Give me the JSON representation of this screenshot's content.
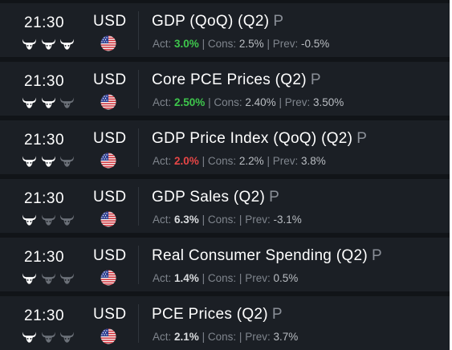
{
  "colors": {
    "background": "#111418",
    "row_background": "#1b1f25",
    "text_primary": "#ffffff",
    "text_muted": "#7f858d",
    "actual_better": "#3ec74c",
    "actual_worse": "#e64646",
    "bull_active": "#ffffff",
    "bull_inactive": "#6b7078"
  },
  "labels": {
    "actual": "Act:",
    "consensus": "Cons:",
    "previous": "Prev:",
    "separator": "|"
  },
  "events": [
    {
      "time": "21:30",
      "currency": "USD",
      "flag_icon": "us-flag-icon",
      "importance": 3,
      "name": "GDP (QoQ) (Q2)",
      "suffix": "P",
      "actual": "3.0%",
      "actual_status": "good",
      "consensus": "2.5%",
      "previous": "-0.5%"
    },
    {
      "time": "21:30",
      "currency": "USD",
      "flag_icon": "us-flag-icon",
      "importance": 2,
      "name": "Core PCE Prices (Q2)",
      "suffix": "P",
      "actual": "2.50%",
      "actual_status": "good",
      "consensus": "2.40%",
      "previous": "3.50%"
    },
    {
      "time": "21:30",
      "currency": "USD",
      "flag_icon": "us-flag-icon",
      "importance": 2,
      "name": "GDP Price Index (QoQ) (Q2)",
      "suffix": "P",
      "actual": "2.0%",
      "actual_status": "bad",
      "consensus": "2.2%",
      "previous": "3.8%"
    },
    {
      "time": "21:30",
      "currency": "USD",
      "flag_icon": "us-flag-icon",
      "importance": 1,
      "name": "GDP Sales (Q2)",
      "suffix": "P",
      "actual": "6.3%",
      "actual_status": "neutral",
      "consensus": "",
      "previous": "-3.1%"
    },
    {
      "time": "21:30",
      "currency": "USD",
      "flag_icon": "us-flag-icon",
      "importance": 1,
      "name": "Real Consumer Spending (Q2)",
      "suffix": "P",
      "actual": "1.4%",
      "actual_status": "neutral",
      "consensus": "",
      "previous": "0.5%"
    },
    {
      "time": "21:30",
      "currency": "USD",
      "flag_icon": "us-flag-icon",
      "importance": 1,
      "name": "PCE Prices (Q2)",
      "suffix": "P",
      "actual": "2.1%",
      "actual_status": "neutral",
      "consensus": "",
      "previous": "3.7%"
    }
  ]
}
